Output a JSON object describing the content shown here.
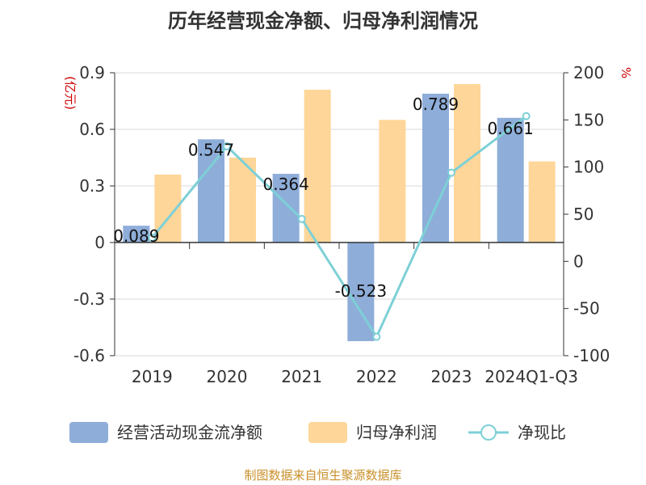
{
  "colors": {
    "cashflow": "#8eadd9",
    "netprofit": "#ffd699",
    "ratio": "#7dd0d6",
    "axis": "#333333",
    "unit": "#cc0000",
    "source": "#c8902a"
  },
  "chart_data": {
    "type": "bar",
    "title": "历年经营现金净额、归母净利润情况",
    "source": "制图数据来自恒生聚源数据库",
    "categories": [
      "2019",
      "2020",
      "2021",
      "2022",
      "2023",
      "2024Q1-Q3"
    ],
    "y_left": {
      "unit": "(亿元)",
      "ylim": [
        -0.6,
        0.9
      ],
      "ticks": [
        "0.9",
        "0.6",
        "0.3",
        "0",
        "-0.3",
        "-0.6"
      ],
      "tick_values": [
        0.9,
        0.6,
        0.3,
        0,
        -0.3,
        -0.6
      ]
    },
    "y_right": {
      "unit": "%",
      "ylim": [
        -100,
        200
      ],
      "ticks": [
        "200",
        "150",
        "100",
        "50",
        "0",
        "-50",
        "-100"
      ],
      "tick_values": [
        200,
        150,
        100,
        50,
        0,
        -50,
        -100
      ]
    },
    "series": [
      {
        "name": "经营活动现金流净额",
        "type": "bar",
        "axis": "left",
        "values": [
          0.089,
          0.547,
          0.364,
          -0.523,
          0.789,
          0.661
        ],
        "labels": [
          "0.089",
          "0.547",
          "0.364",
          "-0.523",
          "0.789",
          "0.661"
        ]
      },
      {
        "name": "归母净利润",
        "type": "bar",
        "axis": "left",
        "values": [
          0.36,
          0.45,
          0.81,
          0.65,
          0.84,
          0.43
        ]
      },
      {
        "name": "净现比",
        "type": "line",
        "axis": "right",
        "values": [
          25,
          122,
          45,
          -80,
          94,
          154
        ]
      }
    ],
    "grid": true,
    "legend": "bottom"
  }
}
